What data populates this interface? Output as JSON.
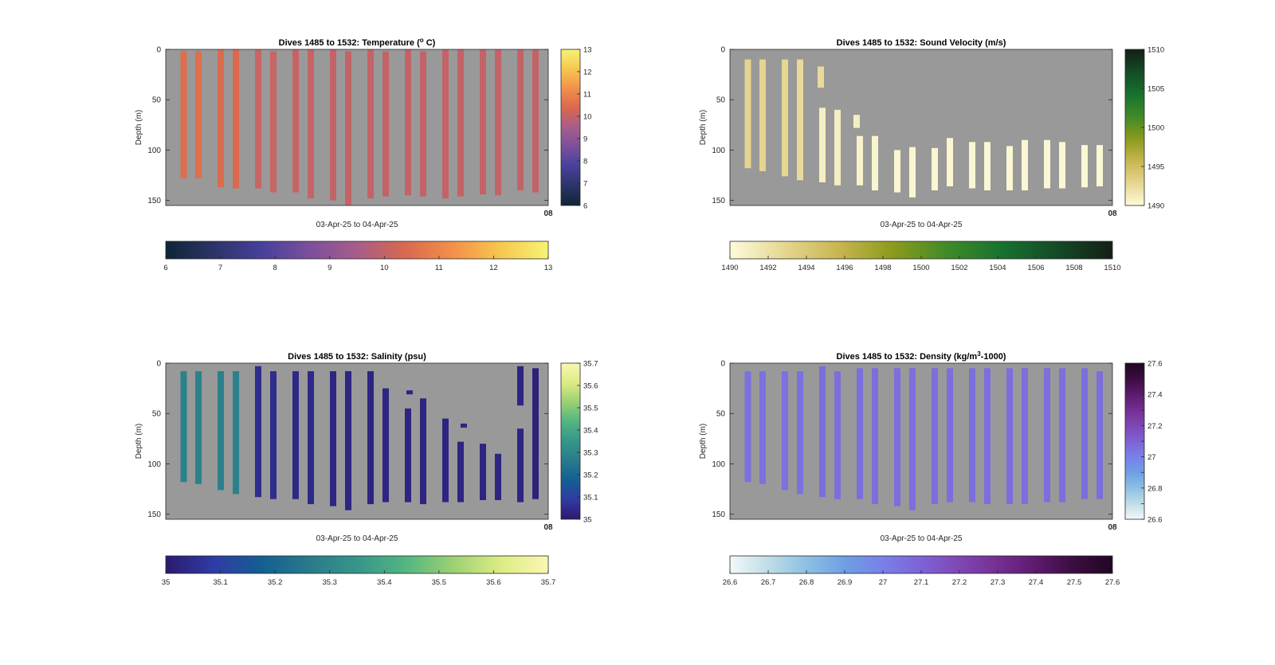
{
  "window": {
    "background": "#ffffff"
  },
  "chart_data": [
    {
      "type": "heatmap",
      "title_prefix": "Dives 1485 to 1532: Temperature (",
      "title_sup": "o",
      "title_suffix": " C)",
      "ylabel": "Depth (m)",
      "xlabel": "03-Apr-25 to 04-Apr-25",
      "x_end_label": "08",
      "ylim": [
        0,
        155
      ],
      "yticks": [
        0,
        50,
        100,
        150
      ],
      "background_color": "#999999",
      "colorbar": {
        "min": 6,
        "max": 13,
        "ticks": [
          6,
          7,
          8,
          9,
          10,
          11,
          12,
          13
        ],
        "colors": [
          "#0f2436",
          "#2b3468",
          "#47409a",
          "#7b4f9c",
          "#a65d8a",
          "#d9684f",
          "#f3904a",
          "#f7c74f",
          "#f6f375"
        ]
      },
      "profiles": [
        {
          "x": 22.5,
          "top": 2,
          "bottom": 128,
          "value": 10.5
        },
        {
          "x": 41,
          "top": 2,
          "bottom": 128,
          "value": 10.5
        },
        {
          "x": 69,
          "top": 0,
          "bottom": 137,
          "value": 10.45
        },
        {
          "x": 88,
          "top": 0,
          "bottom": 138,
          "value": 10.4
        },
        {
          "x": 116,
          "top": 0,
          "bottom": 138,
          "value": 10.1
        },
        {
          "x": 135,
          "top": 2,
          "bottom": 142,
          "value": 10.1
        },
        {
          "x": 163,
          "top": 0,
          "bottom": 142,
          "value": 10.05
        },
        {
          "x": 182,
          "top": 0,
          "bottom": 148,
          "value": 10.05
        },
        {
          "x": 210,
          "top": 0,
          "bottom": 150,
          "value": 10.0
        },
        {
          "x": 229,
          "top": 2,
          "bottom": 155,
          "value": 10.0
        },
        {
          "x": 257,
          "top": 0,
          "bottom": 148,
          "value": 10.0
        },
        {
          "x": 276,
          "top": 2,
          "bottom": 146,
          "value": 10.0
        },
        {
          "x": 304,
          "top": 0,
          "bottom": 145,
          "value": 10.0
        },
        {
          "x": 323,
          "top": 2,
          "bottom": 146,
          "value": 10.0
        },
        {
          "x": 351,
          "top": 0,
          "bottom": 148,
          "value": 10.0
        },
        {
          "x": 370,
          "top": 0,
          "bottom": 146,
          "value": 10.0
        },
        {
          "x": 398,
          "top": 0,
          "bottom": 144,
          "value": 10.0
        },
        {
          "x": 417,
          "top": 0,
          "bottom": 145,
          "value": 10.0
        },
        {
          "x": 445,
          "top": 0,
          "bottom": 140,
          "value": 10.0
        },
        {
          "x": 464,
          "top": 0,
          "bottom": 142,
          "value": 10.0
        }
      ]
    },
    {
      "type": "heatmap",
      "title_prefix": "Dives 1485 to 1532: Sound Velocity (m/s)",
      "title_sup": "",
      "title_suffix": "",
      "ylabel": "Depth (m)",
      "xlabel": "03-Apr-25 to 04-Apr-25",
      "x_end_label": "08",
      "ylim": [
        0,
        155
      ],
      "yticks": [
        0,
        50,
        100,
        150
      ],
      "background_color": "#999999",
      "colorbar": {
        "min": 1490,
        "max": 1510,
        "ticks": [
          1490,
          1495,
          1500,
          1505,
          1510
        ],
        "colors": [
          "#fdfbdc",
          "#e5d690",
          "#c8b550",
          "#8a9a1c",
          "#3f8a28",
          "#16712f",
          "#154a26",
          "#141f16"
        ]
      },
      "profiles": [
        {
          "x": 22.5,
          "top": 10,
          "bottom": 118,
          "value": 1493.0
        },
        {
          "x": 41,
          "top": 10,
          "bottom": 121,
          "value": 1493.0
        },
        {
          "x": 69,
          "top": 10,
          "bottom": 126,
          "value": 1492.8
        },
        {
          "x": 88,
          "top": 10,
          "bottom": 130,
          "value": 1492.5
        },
        {
          "x": 116,
          "top": 58,
          "bottom": 132,
          "value": 1491.0
        },
        {
          "x": 135,
          "top": 60,
          "bottom": 135,
          "value": 1491.0
        },
        {
          "x": 163,
          "top": 86,
          "bottom": 135,
          "value": 1490.6
        },
        {
          "x": 182,
          "top": 86,
          "bottom": 140,
          "value": 1490.5
        },
        {
          "x": 210,
          "top": 100,
          "bottom": 142,
          "value": 1490.4
        },
        {
          "x": 229,
          "top": 97,
          "bottom": 147,
          "value": 1490.4
        },
        {
          "x": 257,
          "top": 98,
          "bottom": 140,
          "value": 1490.4
        },
        {
          "x": 276,
          "top": 88,
          "bottom": 136,
          "value": 1490.4
        },
        {
          "x": 304,
          "top": 92,
          "bottom": 138,
          "value": 1490.3
        },
        {
          "x": 323,
          "top": 92,
          "bottom": 140,
          "value": 1490.3
        },
        {
          "x": 351,
          "top": 96,
          "bottom": 140,
          "value": 1490.3
        },
        {
          "x": 370,
          "top": 90,
          "bottom": 140,
          "value": 1490.3
        },
        {
          "x": 398,
          "top": 90,
          "bottom": 138,
          "value": 1490.3
        },
        {
          "x": 417,
          "top": 92,
          "bottom": 138,
          "value": 1490.3
        },
        {
          "x": 445,
          "top": 95,
          "bottom": 137,
          "value": 1490.3
        },
        {
          "x": 464,
          "top": 95,
          "bottom": 136,
          "value": 1490.3
        }
      ],
      "extra_marks": [
        {
          "x": 114,
          "top": 17,
          "bottom": 38,
          "value": 1492.5
        },
        {
          "x": 159,
          "top": 65,
          "bottom": 78,
          "value": 1491.0
        }
      ]
    },
    {
      "type": "heatmap",
      "title_prefix": "Dives 1485 to 1532: Salinity (psu)",
      "title_sup": "",
      "title_suffix": "",
      "ylabel": "Depth (m)",
      "xlabel": "03-Apr-25 to 04-Apr-25",
      "x_end_label": "08",
      "ylim": [
        0,
        155
      ],
      "yticks": [
        0,
        50,
        100,
        150
      ],
      "background_color": "#999999",
      "colorbar": {
        "min": 35.0,
        "max": 35.7,
        "ticks": [
          35,
          35.1,
          35.2,
          35.3,
          35.4,
          35.5,
          35.6,
          35.7
        ],
        "colors": [
          "#2c1a6e",
          "#2f3ba4",
          "#145f92",
          "#2a7a8b",
          "#35968a",
          "#52b582",
          "#9bd073",
          "#ddeb84",
          "#fbf7b2"
        ]
      },
      "profiles": [
        {
          "x": 22.5,
          "top": 8,
          "bottom": 118,
          "value": 35.28
        },
        {
          "x": 41,
          "top": 8,
          "bottom": 120,
          "value": 35.28
        },
        {
          "x": 69,
          "top": 8,
          "bottom": 126,
          "value": 35.28
        },
        {
          "x": 88,
          "top": 8,
          "bottom": 130,
          "value": 35.28
        },
        {
          "x": 116,
          "top": 3,
          "bottom": 133,
          "value": 35.05
        },
        {
          "x": 135,
          "top": 8,
          "bottom": 135,
          "value": 35.05
        },
        {
          "x": 163,
          "top": 8,
          "bottom": 135,
          "value": 35.04
        },
        {
          "x": 182,
          "top": 8,
          "bottom": 140,
          "value": 35.04
        },
        {
          "x": 210,
          "top": 8,
          "bottom": 142,
          "value": 35.03
        },
        {
          "x": 229,
          "top": 8,
          "bottom": 146,
          "value": 35.03
        },
        {
          "x": 257,
          "top": 8,
          "bottom": 140,
          "value": 35.03
        },
        {
          "x": 276,
          "top": 25,
          "bottom": 138,
          "value": 35.03
        },
        {
          "x": 304,
          "top": 45,
          "bottom": 138,
          "value": 35.03
        },
        {
          "x": 323,
          "top": 35,
          "bottom": 140,
          "value": 35.03
        },
        {
          "x": 351,
          "top": 55,
          "bottom": 138,
          "value": 35.03
        },
        {
          "x": 370,
          "top": 78,
          "bottom": 138,
          "value": 35.03
        },
        {
          "x": 398,
          "top": 80,
          "bottom": 136,
          "value": 35.03
        },
        {
          "x": 417,
          "top": 90,
          "bottom": 136,
          "value": 35.03
        },
        {
          "x": 445,
          "top": 65,
          "bottom": 138,
          "value": 35.03
        },
        {
          "x": 464,
          "top": 5,
          "bottom": 135,
          "value": 35.02
        }
      ],
      "extra_marks": [
        {
          "x": 306,
          "top": 27,
          "bottom": 31,
          "value": 35.03
        },
        {
          "x": 374,
          "top": 60,
          "bottom": 64,
          "value": 35.03
        },
        {
          "x": 445,
          "top": 3,
          "bottom": 42,
          "value": 35.03
        }
      ]
    },
    {
      "type": "heatmap",
      "title_prefix": "Dives 1485 to 1532: Density (kg/m",
      "title_sup": "3",
      "title_suffix": "-1000)",
      "ylabel": "Depth (m)",
      "xlabel": "03-Apr-25 to 04-Apr-25",
      "x_end_label": "08",
      "ylim": [
        0,
        155
      ],
      "yticks": [
        0,
        50,
        100,
        150
      ],
      "background_color": "#999999",
      "colorbar": {
        "min": 26.6,
        "max": 27.6,
        "ticks": [
          26.6,
          26.7,
          26.8,
          26.9,
          27,
          27.1,
          27.2,
          27.3,
          27.4,
          27.5,
          27.6
        ],
        "colors": [
          "#f2f8f8",
          "#bfdde6",
          "#8dc0e3",
          "#6e9fe3",
          "#7980e8",
          "#7e62d6",
          "#7f47b4",
          "#742f92",
          "#5d1a6d",
          "#3a0d40",
          "#210723"
        ]
      },
      "profiles": [
        {
          "x": 22.5,
          "top": 8,
          "bottom": 118,
          "value": 27.05
        },
        {
          "x": 41,
          "top": 8,
          "bottom": 120,
          "value": 27.05
        },
        {
          "x": 69,
          "top": 8,
          "bottom": 126,
          "value": 27.05
        },
        {
          "x": 88,
          "top": 8,
          "bottom": 130,
          "value": 27.05
        },
        {
          "x": 116,
          "top": 3,
          "bottom": 133,
          "value": 27.06
        },
        {
          "x": 135,
          "top": 8,
          "bottom": 135,
          "value": 27.06
        },
        {
          "x": 163,
          "top": 5,
          "bottom": 135,
          "value": 27.06
        },
        {
          "x": 182,
          "top": 5,
          "bottom": 140,
          "value": 27.06
        },
        {
          "x": 210,
          "top": 5,
          "bottom": 142,
          "value": 27.06
        },
        {
          "x": 229,
          "top": 5,
          "bottom": 146,
          "value": 27.06
        },
        {
          "x": 257,
          "top": 5,
          "bottom": 140,
          "value": 27.06
        },
        {
          "x": 276,
          "top": 5,
          "bottom": 138,
          "value": 27.06
        },
        {
          "x": 304,
          "top": 5,
          "bottom": 138,
          "value": 27.06
        },
        {
          "x": 323,
          "top": 5,
          "bottom": 140,
          "value": 27.06
        },
        {
          "x": 351,
          "top": 5,
          "bottom": 140,
          "value": 27.06
        },
        {
          "x": 370,
          "top": 5,
          "bottom": 140,
          "value": 27.06
        },
        {
          "x": 398,
          "top": 5,
          "bottom": 138,
          "value": 27.06
        },
        {
          "x": 417,
          "top": 5,
          "bottom": 138,
          "value": 27.06
        },
        {
          "x": 445,
          "top": 5,
          "bottom": 135,
          "value": 27.06
        },
        {
          "x": 464,
          "top": 8,
          "bottom": 135,
          "value": 27.06
        }
      ]
    }
  ]
}
